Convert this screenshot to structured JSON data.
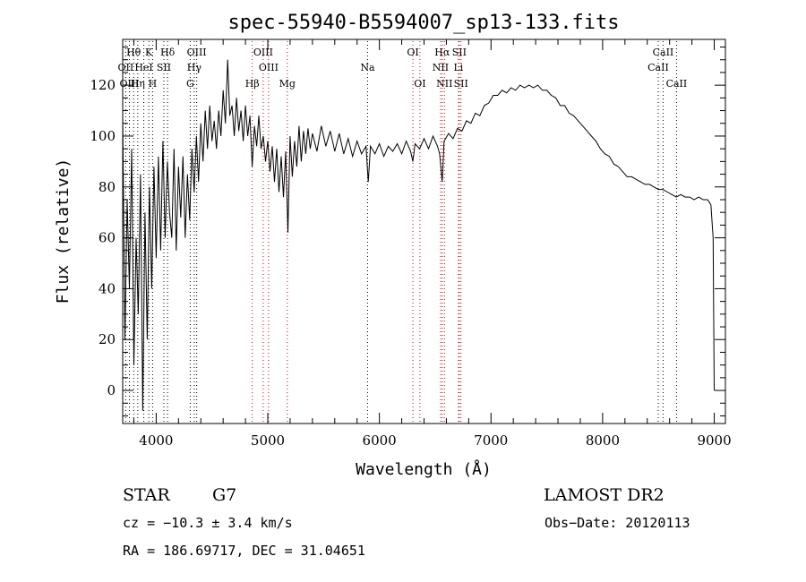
{
  "chart_data": {
    "type": "line",
    "title": "spec-55940-B5594007_sp13-133.fits",
    "xlabel": "Wavelength (Å)",
    "ylabel": "Flux (relative)",
    "xlim": [
      3700,
      9100
    ],
    "ylim": [
      -13,
      138
    ],
    "xticks": [
      4000,
      5000,
      6000,
      7000,
      8000,
      9000
    ],
    "yticks": [
      0,
      20,
      40,
      60,
      80,
      100,
      120
    ],
    "series": [
      {
        "points": [
          [
            3700,
            108
          ],
          [
            3720,
            20
          ],
          [
            3740,
            75
          ],
          [
            3760,
            40
          ],
          [
            3780,
            95
          ],
          [
            3800,
            10
          ],
          [
            3820,
            60
          ],
          [
            3840,
            30
          ],
          [
            3860,
            85
          ],
          [
            3880,
            -8
          ],
          [
            3900,
            70
          ],
          [
            3920,
            20
          ],
          [
            3940,
            80
          ],
          [
            3960,
            40
          ],
          [
            3980,
            88
          ],
          [
            4000,
            52
          ],
          [
            4020,
            92
          ],
          [
            4040,
            55
          ],
          [
            4060,
            98
          ],
          [
            4080,
            60
          ],
          [
            4100,
            90
          ],
          [
            4120,
            70
          ],
          [
            4140,
            60
          ],
          [
            4160,
            95
          ],
          [
            4180,
            55
          ],
          [
            4200,
            88
          ],
          [
            4220,
            68
          ],
          [
            4240,
            92
          ],
          [
            4260,
            60
          ],
          [
            4280,
            85
          ],
          [
            4300,
            67
          ],
          [
            4320,
            95
          ],
          [
            4340,
            78
          ],
          [
            4360,
            100
          ],
          [
            4380,
            82
          ],
          [
            4400,
            105
          ],
          [
            4420,
            90
          ],
          [
            4440,
            110
          ],
          [
            4460,
            95
          ],
          [
            4480,
            112
          ],
          [
            4500,
            98
          ],
          [
            4520,
            106
          ],
          [
            4540,
            95
          ],
          [
            4560,
            110
          ],
          [
            4580,
            100
          ],
          [
            4600,
            118
          ],
          [
            4620,
            105
          ],
          [
            4640,
            130
          ],
          [
            4660,
            108
          ],
          [
            4680,
            112
          ],
          [
            4700,
            100
          ],
          [
            4720,
            115
          ],
          [
            4740,
            102
          ],
          [
            4760,
            110
          ],
          [
            4780,
            98
          ],
          [
            4800,
            112
          ],
          [
            4820,
            100
          ],
          [
            4840,
            108
          ],
          [
            4860,
            88
          ],
          [
            4880,
            104
          ],
          [
            4900,
            96
          ],
          [
            4920,
            108
          ],
          [
            4940,
            95
          ],
          [
            4960,
            100
          ],
          [
            4980,
            90
          ],
          [
            5000,
            98
          ],
          [
            5020,
            86
          ],
          [
            5040,
            96
          ],
          [
            5060,
            82
          ],
          [
            5080,
            95
          ],
          [
            5100,
            78
          ],
          [
            5120,
            92
          ],
          [
            5140,
            76
          ],
          [
            5160,
            94
          ],
          [
            5180,
            62
          ],
          [
            5200,
            100
          ],
          [
            5220,
            84
          ],
          [
            5240,
            98
          ],
          [
            5260,
            88
          ],
          [
            5280,
            104
          ],
          [
            5300,
            90
          ],
          [
            5320,
            102
          ],
          [
            5340,
            93
          ],
          [
            5360,
            103
          ],
          [
            5380,
            95
          ],
          [
            5400,
            101
          ],
          [
            5440,
            94
          ],
          [
            5480,
            104
          ],
          [
            5520,
            96
          ],
          [
            5560,
            102
          ],
          [
            5600,
            94
          ],
          [
            5640,
            101
          ],
          [
            5680,
            93
          ],
          [
            5720,
            99
          ],
          [
            5760,
            92
          ],
          [
            5800,
            98
          ],
          [
            5840,
            93
          ],
          [
            5880,
            96
          ],
          [
            5900,
            82
          ],
          [
            5920,
            96
          ],
          [
            5960,
            93
          ],
          [
            6000,
            97
          ],
          [
            6040,
            92
          ],
          [
            6080,
            96
          ],
          [
            6120,
            94
          ],
          [
            6160,
            97
          ],
          [
            6200,
            93
          ],
          [
            6240,
            98
          ],
          [
            6280,
            94
          ],
          [
            6300,
            90
          ],
          [
            6320,
            97
          ],
          [
            6360,
            95
          ],
          [
            6400,
            99
          ],
          [
            6440,
            95
          ],
          [
            6480,
            100
          ],
          [
            6520,
            96
          ],
          [
            6540,
            93
          ],
          [
            6563,
            82
          ],
          [
            6580,
            98
          ],
          [
            6620,
            101
          ],
          [
            6660,
            99
          ],
          [
            6700,
            103
          ],
          [
            6740,
            102
          ],
          [
            6780,
            106
          ],
          [
            6820,
            105
          ],
          [
            6860,
            109
          ],
          [
            6900,
            108
          ],
          [
            6940,
            112
          ],
          [
            6980,
            113
          ],
          [
            7020,
            116
          ],
          [
            7060,
            116
          ],
          [
            7100,
            118
          ],
          [
            7140,
            117
          ],
          [
            7180,
            119
          ],
          [
            7220,
            118
          ],
          [
            7260,
            120
          ],
          [
            7300,
            119
          ],
          [
            7340,
            120
          ],
          [
            7380,
            119
          ],
          [
            7420,
            120
          ],
          [
            7460,
            118
          ],
          [
            7500,
            118
          ],
          [
            7540,
            116
          ],
          [
            7580,
            115
          ],
          [
            7620,
            112
          ],
          [
            7660,
            112
          ],
          [
            7700,
            109
          ],
          [
            7740,
            108
          ],
          [
            7780,
            106
          ],
          [
            7820,
            104
          ],
          [
            7860,
            102
          ],
          [
            7900,
            100
          ],
          [
            7940,
            98
          ],
          [
            7980,
            95
          ],
          [
            8020,
            93
          ],
          [
            8060,
            92
          ],
          [
            8100,
            89
          ],
          [
            8140,
            88
          ],
          [
            8180,
            86
          ],
          [
            8220,
            84
          ],
          [
            8260,
            84
          ],
          [
            8300,
            83
          ],
          [
            8340,
            82
          ],
          [
            8380,
            81
          ],
          [
            8420,
            81
          ],
          [
            8460,
            80
          ],
          [
            8500,
            79
          ],
          [
            8540,
            79
          ],
          [
            8580,
            78
          ],
          [
            8620,
            77
          ],
          [
            8660,
            76
          ],
          [
            8700,
            77
          ],
          [
            8740,
            76
          ],
          [
            8780,
            76
          ],
          [
            8820,
            75
          ],
          [
            8860,
            76
          ],
          [
            8900,
            75
          ],
          [
            8940,
            75
          ],
          [
            8970,
            73
          ],
          [
            8990,
            60
          ],
          [
            9000,
            0
          ]
        ]
      }
    ],
    "lines": [
      {
        "label": "Hθ",
        "x": 3798,
        "row": 0,
        "color": "#000000"
      },
      {
        "label": "OII",
        "x": 3727,
        "row": 1,
        "color": "#000000"
      },
      {
        "label": "OIII",
        "x": 3760,
        "row": 2,
        "color": "#000000"
      },
      {
        "label": "Hη",
        "x": 3835,
        "row": 2,
        "color": "#000000"
      },
      {
        "label": "K",
        "x": 3934,
        "row": 0,
        "color": "#000000"
      },
      {
        "label": "HeI",
        "x": 3889,
        "row": 1,
        "color": "#000000"
      },
      {
        "label": "H",
        "x": 3968,
        "row": 2,
        "color": "#000000"
      },
      {
        "label": "SII",
        "x": 4069,
        "row": 1,
        "color": "#000000"
      },
      {
        "label": "Hδ",
        "x": 4102,
        "row": 0,
        "color": "#000000"
      },
      {
        "label": "OIII",
        "x": 4363,
        "row": 0,
        "color": "#000000"
      },
      {
        "label": "Hγ",
        "x": 4341,
        "row": 1,
        "color": "#000000"
      },
      {
        "label": "G",
        "x": 4305,
        "row": 2,
        "color": "#000000"
      },
      {
        "label": "OIII",
        "x": 4959,
        "row": 0,
        "color": "#cc0000"
      },
      {
        "label": "OIII",
        "x": 5007,
        "row": 1,
        "color": "#cc0000"
      },
      {
        "label": "Hβ",
        "x": 4861,
        "row": 2,
        "color": "#cc0000"
      },
      {
        "label": "Mg",
        "x": 5175,
        "row": 2,
        "color": "#cc0000"
      },
      {
        "label": "Na",
        "x": 5894,
        "row": 1,
        "color": "#000000"
      },
      {
        "label": "OI",
        "x": 6300,
        "row": 0,
        "color": "#cc0000"
      },
      {
        "label": "OI",
        "x": 6363,
        "row": 2,
        "color": "#cc0000"
      },
      {
        "label": "Hα",
        "x": 6563,
        "row": 0,
        "color": "#cc0000"
      },
      {
        "label": "NII",
        "x": 6548,
        "row": 1,
        "color": "#cc0000"
      },
      {
        "label": "NII",
        "x": 6583,
        "row": 2,
        "color": "#cc0000"
      },
      {
        "label": "SII",
        "x": 6716,
        "row": 0,
        "color": "#cc0000"
      },
      {
        "label": "Li",
        "x": 6708,
        "row": 1,
        "color": "#cc0000"
      },
      {
        "label": "SII",
        "x": 6731,
        "row": 2,
        "color": "#cc0000"
      },
      {
        "label": "CaII",
        "x": 8542,
        "row": 0,
        "color": "#000000"
      },
      {
        "label": "CaII",
        "x": 8498,
        "row": 1,
        "color": "#000000"
      },
      {
        "label": "CaII",
        "x": 8662,
        "row": 2,
        "color": "#000000"
      }
    ]
  },
  "info": {
    "class": "STAR",
    "subclass": "G7",
    "survey": "LAMOST DR2",
    "cz": "cz = −10.3 ± 3.4 km/s",
    "obs_date": "Obs−Date: 20120113",
    "radec": "RA = 186.69717, DEC =  31.04651"
  }
}
